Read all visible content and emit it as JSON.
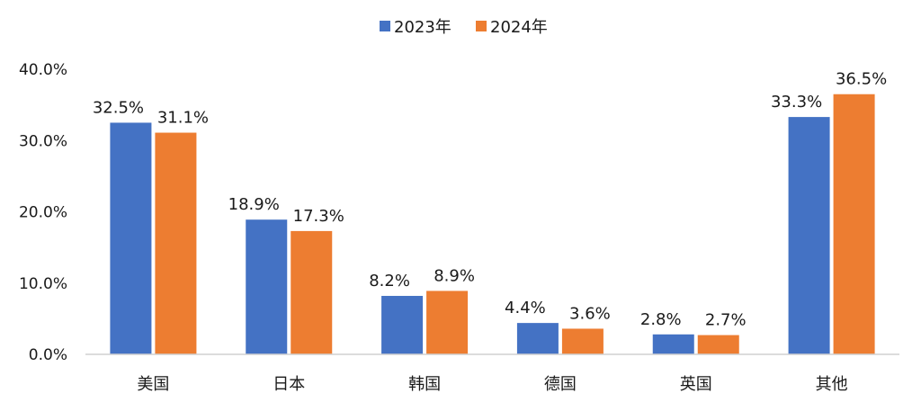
{
  "chart_data": {
    "type": "bar",
    "categories": [
      "美国",
      "日本",
      "韩国",
      "德国",
      "英国",
      "其他"
    ],
    "series": [
      {
        "name": "2023年",
        "color": "#4472C4",
        "values": [
          32.5,
          18.9,
          8.2,
          4.4,
          2.8,
          33.3
        ],
        "labels": [
          "32.5%",
          "18.9%",
          "8.2%",
          "4.4%",
          "2.8%",
          "33.3%"
        ]
      },
      {
        "name": "2024年",
        "color": "#ED7D31",
        "values": [
          31.1,
          17.3,
          8.9,
          3.6,
          2.7,
          36.5
        ],
        "labels": [
          "31.1%",
          "17.3%",
          "8.9%",
          "3.6%",
          "2.7%",
          "36.5%"
        ]
      }
    ],
    "yticks": [
      "0.0%",
      "10.0%",
      "20.0%",
      "30.0%",
      "40.0%"
    ],
    "ylim": [
      0,
      40
    ],
    "grid": false,
    "legend_position": "top-center"
  }
}
